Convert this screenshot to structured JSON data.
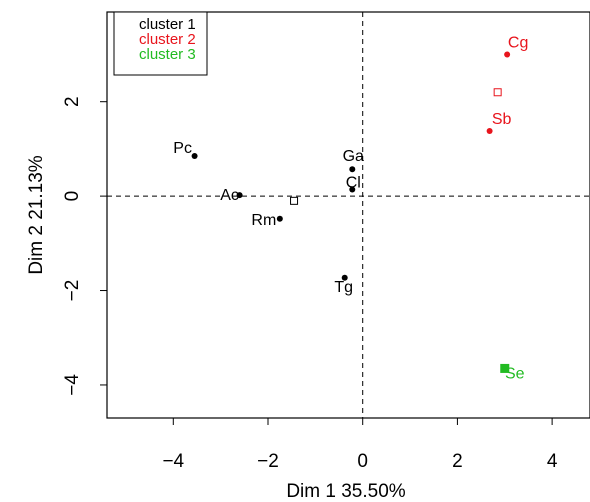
{
  "chart_data": {
    "type": "scatter",
    "title": "",
    "xlabel": "Dim 1 35.50%",
    "ylabel": "Dim 2 21.13%",
    "xlim": [
      -5.4,
      4.8
    ],
    "ylim": [
      -4.7,
      3.9
    ],
    "x_ticks": [
      -4,
      -2,
      0,
      2,
      4
    ],
    "y_ticks": [
      -4,
      -2,
      0,
      2
    ],
    "reference_lines": {
      "x": 0,
      "y": 0,
      "style": "dashed"
    },
    "legend": {
      "position": "top-left",
      "entries": [
        {
          "label": "cluster 1",
          "color": "#000000"
        },
        {
          "label": "cluster 2",
          "color": "#e8141c"
        },
        {
          "label": "cluster 3",
          "color": "#22bb22"
        }
      ]
    },
    "points": [
      {
        "label": "Pc",
        "x": -3.55,
        "y": 0.85,
        "cluster": 1
      },
      {
        "label": "Ac",
        "x": -2.6,
        "y": 0.02,
        "cluster": 1
      },
      {
        "label": "Rm",
        "x": -1.75,
        "y": -0.48,
        "cluster": 1
      },
      {
        "label": "Ga",
        "x": -0.22,
        "y": 0.57,
        "cluster": 1
      },
      {
        "label": "Cl",
        "x": -0.22,
        "y": 0.14,
        "cluster": 1
      },
      {
        "label": "Tg",
        "x": -0.38,
        "y": -1.73,
        "cluster": 1
      },
      {
        "label": "Cg",
        "x": 3.05,
        "y": 3.0,
        "cluster": 2
      },
      {
        "label": "Sb",
        "x": 2.68,
        "y": 1.38,
        "cluster": 2
      },
      {
        "label": "Se",
        "x": 3.0,
        "y": -3.65,
        "cluster": 3
      }
    ],
    "centroids": [
      {
        "x": -1.45,
        "y": -0.1,
        "cluster": 1
      },
      {
        "x": 2.85,
        "y": 2.2,
        "cluster": 2
      },
      {
        "x": 3.0,
        "y": -3.65,
        "cluster": 3
      }
    ]
  }
}
